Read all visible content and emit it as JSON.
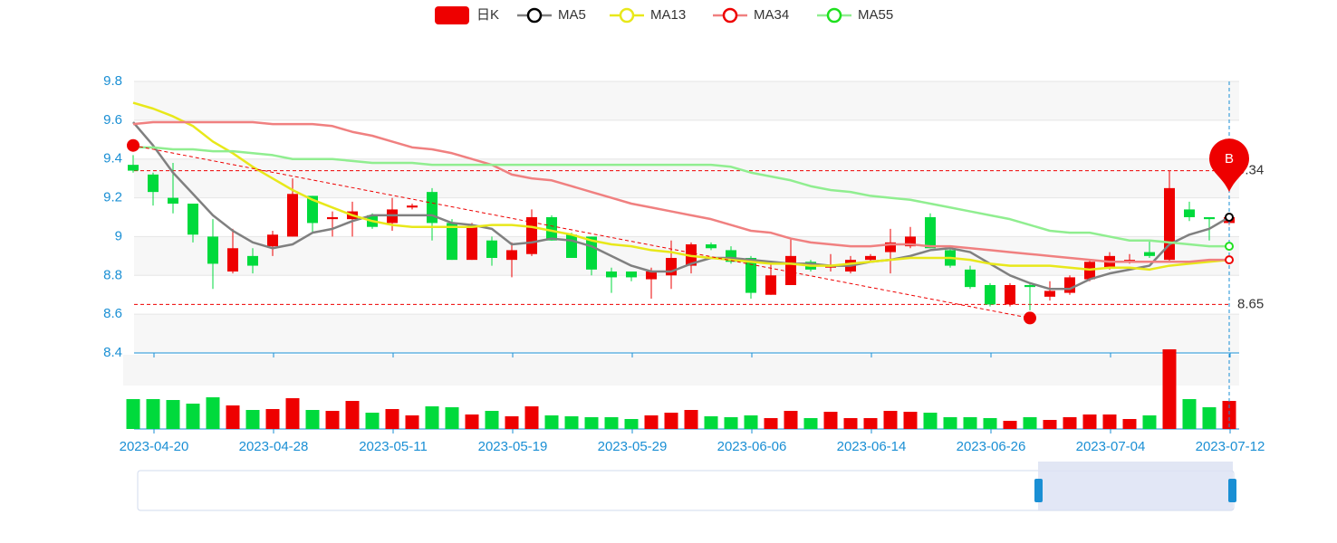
{
  "chart_data": {
    "type": "candlestick",
    "categories": [
      null,
      "2023-04-20",
      null,
      null,
      null,
      null,
      null,
      "2023-04-28",
      null,
      null,
      null,
      null,
      null,
      "2023-05-11",
      null,
      null,
      null,
      null,
      null,
      "2023-05-19",
      null,
      null,
      null,
      null,
      null,
      "2023-05-29",
      null,
      null,
      null,
      null,
      null,
      "2023-06-06",
      null,
      null,
      null,
      null,
      null,
      "2023-06-14",
      null,
      null,
      null,
      null,
      null,
      "2023-06-26",
      null,
      null,
      null,
      null,
      null,
      "2023-07-04",
      null,
      null,
      null,
      null,
      null,
      "2023-07-12"
    ],
    "ylim": [
      8.4,
      9.8
    ],
    "yticks": [
      8.4,
      8.6,
      8.8,
      9,
      9.2,
      9.4,
      9.6,
      9.8
    ],
    "grid": true,
    "candles": {
      "name": "日K",
      "color_up": "#ee0000",
      "color_down": "#00da3c",
      "open": [
        9.37,
        9.32,
        9.2,
        9.17,
        9.0,
        8.82,
        8.9,
        8.95,
        9.0,
        9.21,
        9.09,
        9.09,
        9.11,
        9.07,
        9.15,
        9.23,
        9.07,
        8.88,
        8.98,
        8.88,
        8.91,
        9.1,
        9.01,
        9.0,
        8.82,
        8.82,
        8.78,
        8.8,
        8.85,
        8.96,
        8.93,
        8.89,
        8.7,
        8.75,
        8.87,
        8.84,
        8.82,
        8.88,
        8.92,
        8.95,
        9.1,
        8.93,
        8.83,
        8.75,
        8.65,
        8.75,
        8.69,
        8.71,
        8.78,
        8.84,
        8.87,
        8.92,
        8.88,
        9.14,
        9.1,
        9.07
      ],
      "close": [
        9.34,
        9.23,
        9.17,
        9.01,
        8.86,
        8.94,
        8.85,
        9.01,
        9.22,
        9.07,
        9.1,
        9.13,
        9.05,
        9.14,
        9.16,
        9.07,
        8.88,
        9.05,
        8.89,
        8.93,
        9.1,
        8.98,
        8.89,
        8.83,
        8.79,
        8.79,
        8.82,
        8.89,
        8.96,
        8.94,
        8.87,
        8.71,
        8.8,
        8.9,
        8.83,
        8.85,
        8.88,
        8.9,
        8.97,
        9.0,
        8.94,
        8.85,
        8.74,
        8.65,
        8.75,
        8.74,
        8.72,
        8.79,
        8.87,
        8.9,
        8.88,
        8.9,
        9.25,
        9.1,
        9.09,
        9.1
      ],
      "low": [
        9.33,
        9.16,
        9.12,
        8.97,
        8.73,
        8.81,
        8.81,
        8.9,
        9.0,
        9.02,
        9.0,
        9.0,
        9.04,
        9.03,
        9.14,
        8.98,
        8.88,
        8.88,
        8.85,
        8.79,
        8.9,
        8.98,
        8.89,
        8.8,
        8.71,
        8.77,
        8.68,
        8.73,
        8.81,
        8.93,
        8.86,
        8.68,
        8.7,
        8.75,
        8.82,
        8.82,
        8.81,
        8.87,
        8.81,
        8.94,
        8.94,
        8.84,
        8.73,
        8.64,
        8.64,
        8.62,
        8.67,
        8.7,
        8.77,
        8.83,
        8.86,
        8.89,
        8.87,
        9.08,
        8.98,
        9.06
      ],
      "high": [
        9.42,
        9.33,
        9.38,
        9.17,
        9.09,
        9.04,
        8.94,
        9.03,
        9.3,
        9.21,
        9.13,
        9.18,
        9.12,
        9.2,
        9.17,
        9.25,
        9.09,
        9.07,
        9.0,
        8.97,
        9.14,
        9.11,
        9.02,
        9.0,
        8.84,
        8.82,
        8.84,
        8.98,
        8.97,
        8.97,
        8.95,
        8.9,
        8.87,
        8.99,
        8.88,
        8.91,
        8.9,
        8.91,
        9.04,
        9.05,
        9.12,
        8.95,
        8.85,
        8.76,
        8.76,
        8.76,
        8.77,
        8.8,
        8.88,
        8.92,
        8.91,
        8.98,
        9.34,
        9.18,
        9.1,
        9.12
      ]
    },
    "series": [
      {
        "name": "MA5",
        "color": "#808080",
        "marker_color": "#000000",
        "values": [
          9.59,
          9.47,
          9.33,
          9.22,
          9.11,
          9.03,
          8.97,
          8.94,
          8.96,
          9.02,
          9.04,
          9.08,
          9.11,
          9.11,
          9.11,
          9.11,
          9.07,
          9.06,
          9.04,
          8.96,
          8.97,
          8.99,
          8.98,
          8.95,
          8.9,
          8.85,
          8.82,
          8.82,
          8.86,
          8.89,
          8.89,
          8.88,
          8.87,
          8.86,
          8.86,
          8.85,
          8.85,
          8.87,
          8.88,
          8.9,
          8.93,
          8.94,
          8.92,
          8.86,
          8.8,
          8.76,
          8.73,
          8.73,
          8.78,
          8.81,
          8.83,
          8.85,
          8.96,
          9.01,
          9.04,
          9.1
        ]
      },
      {
        "name": "MA13",
        "color": "#e8e81a",
        "marker_color": "#e8e81a",
        "values": [
          9.69,
          9.66,
          9.62,
          9.57,
          9.49,
          9.43,
          9.36,
          9.3,
          9.24,
          9.19,
          9.15,
          9.11,
          9.08,
          9.06,
          9.05,
          9.05,
          9.05,
          9.05,
          9.06,
          9.06,
          9.05,
          9.03,
          9.01,
          8.98,
          8.96,
          8.95,
          8.93,
          8.92,
          8.9,
          8.89,
          8.88,
          8.87,
          8.86,
          8.86,
          8.85,
          8.85,
          8.86,
          8.87,
          8.88,
          8.89,
          8.89,
          8.89,
          8.88,
          8.86,
          8.85,
          8.85,
          8.85,
          8.84,
          8.83,
          8.84,
          8.84,
          8.83,
          8.85,
          8.86,
          8.87,
          8.88
        ]
      },
      {
        "name": "MA34",
        "color": "#f08080",
        "marker_color": "#ee0000",
        "values": [
          9.58,
          9.59,
          9.59,
          9.59,
          9.59,
          9.59,
          9.59,
          9.58,
          9.58,
          9.58,
          9.57,
          9.54,
          9.52,
          9.49,
          9.46,
          9.45,
          9.43,
          9.4,
          9.37,
          9.32,
          9.3,
          9.29,
          9.26,
          9.23,
          9.2,
          9.17,
          9.15,
          9.13,
          9.11,
          9.09,
          9.06,
          9.03,
          9.02,
          8.99,
          8.97,
          8.96,
          8.95,
          8.95,
          8.96,
          8.96,
          8.95,
          8.95,
          8.94,
          8.93,
          8.92,
          8.91,
          8.9,
          8.89,
          8.88,
          8.87,
          8.87,
          8.87,
          8.87,
          8.87,
          8.88,
          8.88
        ]
      },
      {
        "name": "MA55",
        "color": "#90ee90",
        "marker_color": "#1ee01e",
        "values": [
          9.46,
          9.46,
          9.45,
          9.45,
          9.44,
          9.44,
          9.43,
          9.42,
          9.4,
          9.4,
          9.4,
          9.39,
          9.38,
          9.38,
          9.38,
          9.37,
          9.37,
          9.37,
          9.37,
          9.37,
          9.37,
          9.37,
          9.37,
          9.37,
          9.37,
          9.37,
          9.37,
          9.37,
          9.37,
          9.37,
          9.36,
          9.33,
          9.31,
          9.29,
          9.26,
          9.24,
          9.23,
          9.21,
          9.2,
          9.19,
          9.17,
          9.15,
          9.13,
          9.11,
          9.09,
          9.06,
          9.03,
          9.02,
          9.02,
          9.0,
          8.98,
          8.98,
          8.97,
          8.96,
          8.95,
          8.95
        ]
      }
    ],
    "volume": {
      "ylim": [
        0,
        90
      ],
      "values": [
        33,
        33,
        32,
        28,
        35,
        26,
        21,
        22,
        34,
        21,
        20,
        31,
        18,
        22,
        15,
        25,
        24,
        16,
        20,
        14,
        25,
        15,
        14,
        13,
        13,
        11,
        15,
        18,
        21,
        14,
        13,
        15,
        12,
        20,
        12,
        19,
        12,
        12,
        20,
        19,
        18,
        13,
        13,
        12,
        9,
        13,
        10,
        13,
        16,
        16,
        11,
        15,
        88,
        33,
        24,
        31
      ]
    },
    "mark_lines": [
      9.34,
      8.65
    ],
    "trend_line": {
      "start": [
        0,
        9.47
      ],
      "end": [
        45,
        8.58
      ]
    },
    "signal": {
      "label": "B",
      "at": 55,
      "value": 9.23
    }
  }
}
